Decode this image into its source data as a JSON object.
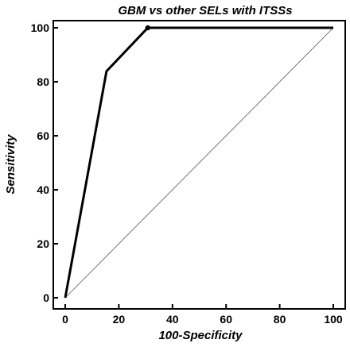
{
  "chart_data": {
    "type": "line",
    "title": "GBM vs other SELs with ITSSs",
    "xlabel": "100-Specificity",
    "ylabel": "Sensitivity",
    "xlim": [
      0,
      100
    ],
    "ylim": [
      0,
      100
    ],
    "x_ticks": [
      "0",
      "20",
      "40",
      "60",
      "80",
      "100"
    ],
    "y_ticks": [
      "0",
      "20",
      "40",
      "60",
      "80",
      "100"
    ],
    "grid": false,
    "legend": "none",
    "series": [
      {
        "style": "bold-line",
        "x": [
          0,
          15.4,
          30.8,
          100
        ],
        "y": [
          0,
          83.9,
          100,
          100
        ],
        "marker_x": [
          30.8
        ],
        "marker_y": [
          100
        ]
      },
      {
        "style": "thin-diagonal",
        "x": [
          0,
          100
        ],
        "y": [
          0,
          100
        ]
      }
    ],
    "colors": {
      "line": "#000000",
      "diagonal": "#555555"
    }
  }
}
